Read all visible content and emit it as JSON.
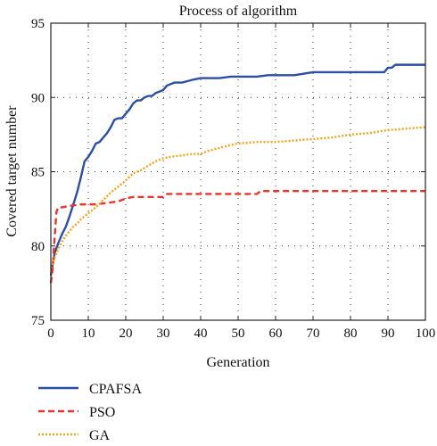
{
  "chart_data": {
    "type": "line",
    "title": "Process of algorithm",
    "xlabel": "Generation",
    "ylabel": "Covered target number",
    "xlim": [
      0,
      100
    ],
    "ylim": [
      75,
      95
    ],
    "xticks": [
      0,
      10,
      20,
      30,
      40,
      50,
      60,
      70,
      80,
      90,
      100
    ],
    "yticks": [
      75,
      80,
      85,
      90,
      95
    ],
    "grid": true,
    "legend_placement": "below-left",
    "series": [
      {
        "name": "CPAFSA",
        "color": "#2c4fa3",
        "style": "solid",
        "x": [
          0,
          1,
          2,
          3,
          4,
          5,
          6,
          7,
          8,
          9,
          10,
          11,
          12,
          13,
          14,
          15,
          16,
          17,
          18,
          19,
          20,
          21,
          22,
          23,
          24,
          25,
          26,
          27,
          28,
          29,
          30,
          31,
          32,
          33,
          35,
          38,
          40,
          45,
          48,
          55,
          58,
          62,
          65,
          70,
          75,
          80,
          85,
          89,
          90,
          91,
          92,
          95,
          100
        ],
        "y": [
          78.0,
          79.5,
          80.2,
          80.8,
          81.3,
          82.0,
          82.8,
          83.6,
          84.6,
          85.7,
          86.0,
          86.4,
          86.9,
          87.0,
          87.3,
          87.6,
          88.0,
          88.5,
          88.6,
          88.6,
          88.9,
          89.2,
          89.6,
          89.8,
          89.8,
          90.0,
          90.1,
          90.1,
          90.3,
          90.4,
          90.5,
          90.8,
          90.9,
          91.0,
          91.0,
          91.2,
          91.3,
          91.3,
          91.4,
          91.4,
          91.5,
          91.5,
          91.5,
          91.7,
          91.7,
          91.7,
          91.7,
          91.7,
          92.0,
          92.0,
          92.2,
          92.2,
          92.2
        ]
      },
      {
        "name": "PSO",
        "color": "#e8352b",
        "style": "dashed",
        "x": [
          0,
          0.5,
          1,
          1.5,
          2,
          3,
          5,
          8,
          12,
          15,
          18,
          20,
          22,
          25,
          30,
          31,
          35,
          40,
          45,
          50,
          55,
          56,
          60,
          65,
          70,
          80,
          90,
          100
        ],
        "y": [
          77.5,
          78.5,
          80.5,
          82.3,
          82.6,
          82.6,
          82.7,
          82.8,
          82.8,
          82.9,
          83.0,
          83.2,
          83.3,
          83.3,
          83.3,
          83.5,
          83.5,
          83.5,
          83.5,
          83.5,
          83.5,
          83.7,
          83.7,
          83.7,
          83.7,
          83.7,
          83.7,
          83.7
        ]
      },
      {
        "name": "GA",
        "color": "#f5a31a",
        "style": "dotted",
        "x": [
          0,
          1,
          2,
          3,
          4,
          5,
          6,
          7,
          8,
          9,
          10,
          12,
          14,
          16,
          18,
          20,
          22,
          24,
          26,
          28,
          30,
          32,
          35,
          38,
          40,
          42,
          45,
          48,
          50,
          55,
          60,
          65,
          70,
          75,
          80,
          85,
          90,
          95,
          100
        ],
        "y": [
          78.5,
          79.2,
          79.8,
          80.3,
          80.7,
          81.0,
          81.3,
          81.5,
          81.8,
          82.0,
          82.2,
          82.6,
          83.1,
          83.6,
          84.0,
          84.4,
          84.9,
          85.1,
          85.4,
          85.7,
          85.9,
          86.0,
          86.1,
          86.2,
          86.2,
          86.4,
          86.6,
          86.8,
          86.9,
          87.0,
          87.0,
          87.1,
          87.2,
          87.3,
          87.5,
          87.6,
          87.8,
          87.9,
          88.0
        ]
      }
    ]
  }
}
